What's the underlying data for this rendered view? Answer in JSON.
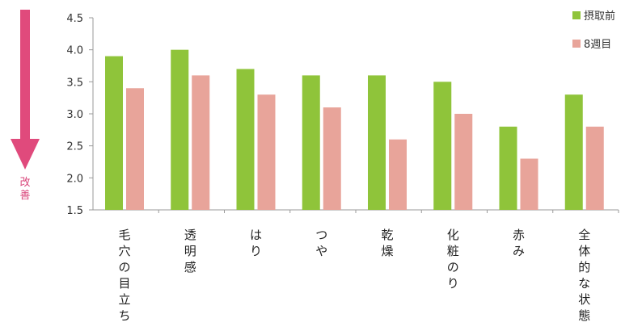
{
  "improvement_label": "改善",
  "colors": {
    "series_1": "#8fc43a",
    "series_2": "#e8a49a",
    "arrow": "#e04a7c",
    "axis": "#9a9a9a"
  },
  "chart_data": {
    "type": "bar",
    "ylim": [
      1.5,
      4.5
    ],
    "y_ticks": [
      "1.5",
      "2.0",
      "2.5",
      "3.0",
      "3.5",
      "4.0",
      "4.5"
    ],
    "categories": [
      "毛穴の目立ち",
      "透明感",
      "はり",
      "つや",
      "乾燥",
      "化粧のり",
      "赤み",
      "全体的な状態"
    ],
    "series": [
      {
        "name": "摂取前",
        "values": [
          3.9,
          4.0,
          3.7,
          3.6,
          3.6,
          3.5,
          2.8,
          3.3
        ]
      },
      {
        "name": "8週目",
        "values": [
          3.4,
          3.6,
          3.3,
          3.1,
          2.6,
          3.0,
          2.3,
          2.8
        ]
      }
    ],
    "legend": "top-right",
    "grid": false
  }
}
